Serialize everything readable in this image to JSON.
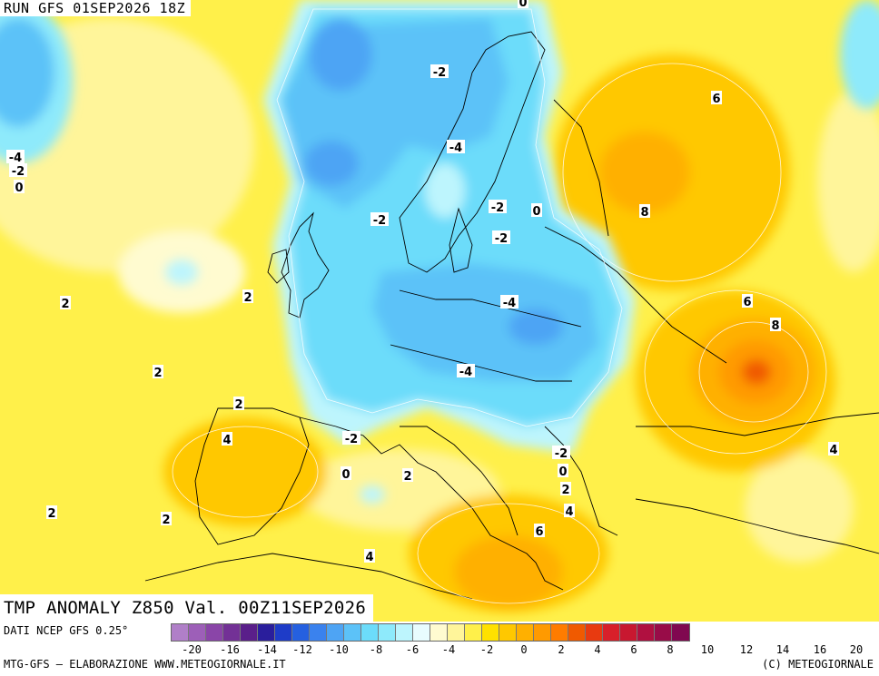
{
  "header": {
    "run_label": "RUN GFS 01SEP2026 18Z"
  },
  "title": "TMP ANOMALY Z850 Val. 00Z11SEP2026",
  "footer": {
    "data_source": "DATI NCEP GFS 0.25°",
    "credit_left": "MTG-GFS – ELABORAZIONE WWW.METEOGIORNALE.IT",
    "credit_right": "(C) METEOGIORNALE"
  },
  "colors": {
    "scale": [
      "#b07fc8",
      "#9d5fb8",
      "#8a45a8",
      "#733196",
      "#5a1f8a",
      "#2a1e9c",
      "#1e3cc8",
      "#2560e0",
      "#3a82ee",
      "#4ea4f4",
      "#5cc2f8",
      "#6cdcfa",
      "#8eeafb",
      "#bdf5fd",
      "#e8fcfe",
      "#fffbd0",
      "#fff59a",
      "#fff04a",
      "#ffe100",
      "#ffc800",
      "#ffb000",
      "#ff9a00",
      "#ff7c00",
      "#f05a00",
      "#e83a10",
      "#d8202a",
      "#c81830",
      "#b01040",
      "#980c48",
      "#800850"
    ]
  },
  "colorbar": {
    "ticks": [
      "-20",
      "-16",
      "-14",
      "-12",
      "-10",
      "-8",
      "-6",
      "-4",
      "-2",
      "0",
      "2",
      "4",
      "6",
      "8",
      "10",
      "12",
      "14",
      "16",
      "20"
    ]
  },
  "contour_labels": [
    {
      "text": "-2",
      "bg": "#ffffff"
    },
    {
      "text": "-4",
      "bg": "#ffffff"
    },
    {
      "text": "-2",
      "bg": "#ffffff"
    },
    {
      "text": "-2",
      "bg": "#ffffff"
    },
    {
      "text": "-2",
      "bg": "#ffffff"
    },
    {
      "text": "-4",
      "bg": "#ffffff"
    },
    {
      "text": "-4",
      "bg": "#ffffff"
    },
    {
      "text": "-2",
      "bg": "#ffffff"
    },
    {
      "text": "-2",
      "bg": "#ffffff"
    },
    {
      "text": "-4",
      "bg": "#ffffff"
    },
    {
      "text": "-2",
      "bg": "#ffffff"
    },
    {
      "text": "0",
      "bg": "#ffffff"
    },
    {
      "text": "0",
      "bg": "#ffffff"
    },
    {
      "text": "0",
      "bg": "#ffffff"
    },
    {
      "text": "0",
      "bg": "#ffffff"
    },
    {
      "text": "2",
      "bg": "#ffffff"
    },
    {
      "text": "2",
      "bg": "#ffffff"
    },
    {
      "text": "2",
      "bg": "#ffffff"
    },
    {
      "text": "2",
      "bg": "#ffffff"
    },
    {
      "text": "2",
      "bg": "#ffffff"
    },
    {
      "text": "2",
      "bg": "#ffffff"
    },
    {
      "text": "2",
      "bg": "#ffffff"
    },
    {
      "text": "2",
      "bg": "#ffffff"
    },
    {
      "text": "4",
      "bg": "#ffffff"
    },
    {
      "text": "4",
      "bg": "#ffffff"
    },
    {
      "text": "4",
      "bg": "#ffffff"
    },
    {
      "text": "4",
      "bg": "#ffffff"
    },
    {
      "text": "6",
      "bg": "#ffffff"
    },
    {
      "text": "6",
      "bg": "#ffffff"
    },
    {
      "text": "6",
      "bg": "#ffffff"
    },
    {
      "text": "8",
      "bg": "#ffffff"
    },
    {
      "text": "8",
      "bg": "#ffffff"
    },
    {
      "text": "0",
      "bg": "#ffffff"
    }
  ]
}
